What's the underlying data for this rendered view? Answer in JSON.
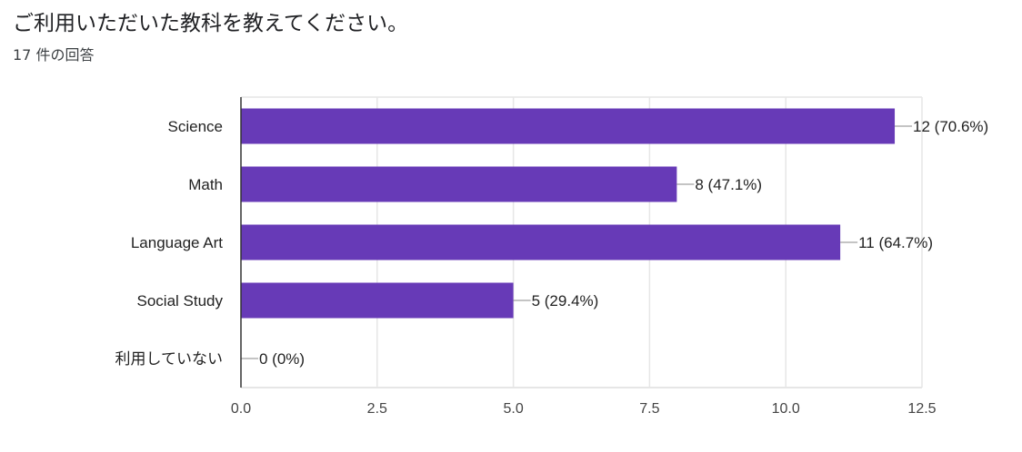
{
  "question": {
    "title": "ご利用いただいた教科を教えてください。",
    "response_count": "17 件の回答"
  },
  "colors": {
    "bar": "#673ab7",
    "grid": "#e6e6e6",
    "axis": "#333333",
    "leader": "#888888"
  },
  "chart_data": {
    "type": "bar",
    "orientation": "horizontal",
    "title": "",
    "xlabel": "",
    "ylabel": "",
    "categories": [
      "Science",
      "Math",
      "Language Art",
      "Social Study",
      "利用していない"
    ],
    "values": [
      12,
      8,
      11,
      5,
      0
    ],
    "data_labels": [
      "12 (70.6%)",
      "8 (47.1%)",
      "11 (64.7%)",
      "5 (29.4%)",
      "0 (0%)"
    ],
    "xlim": [
      0,
      12.5
    ],
    "xticks": [
      0,
      2.5,
      5,
      7.5,
      10,
      12.5
    ],
    "xtick_labels": [
      "0.0",
      "2.5",
      "5.0",
      "7.5",
      "10.0",
      "12.5"
    ],
    "grid": true,
    "legend": "none"
  }
}
